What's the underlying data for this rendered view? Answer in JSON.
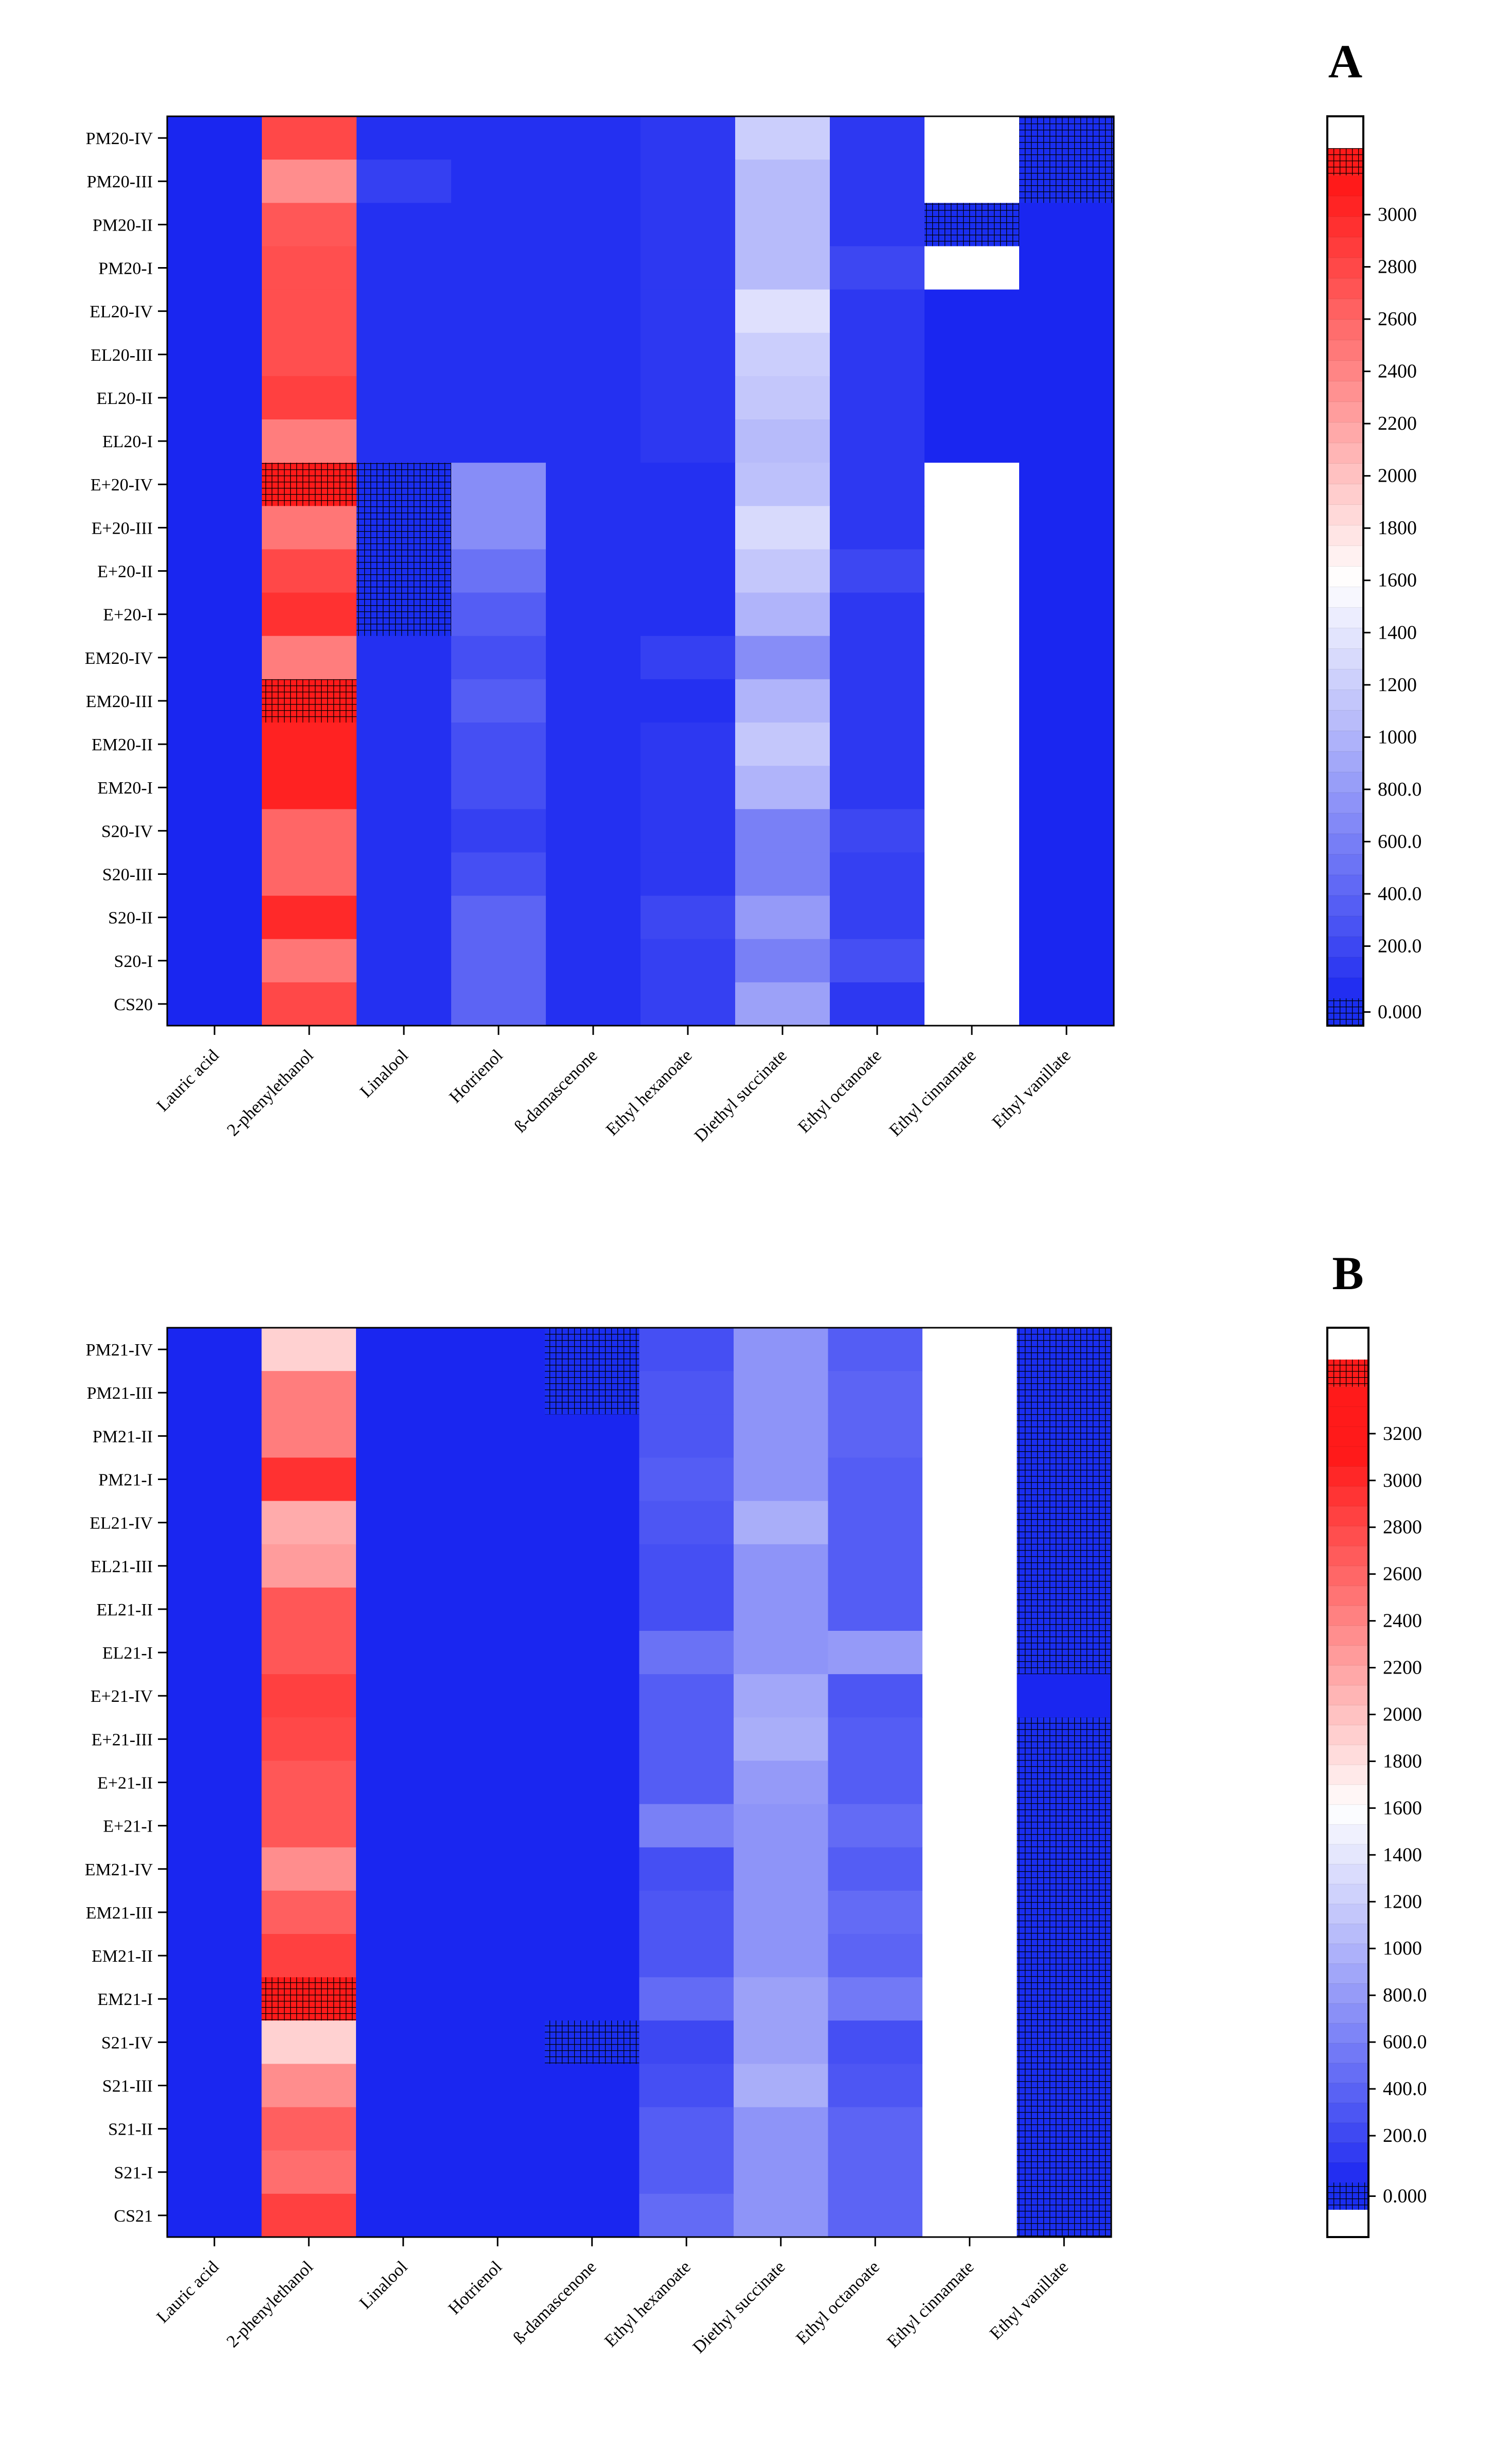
{
  "chart_data": [
    {
      "type": "heatmap",
      "panel_label": "A",
      "columns": [
        "Lauric acid",
        "2-phenylethanol",
        "Linalool",
        "Hotrienol",
        "ß-damascenone",
        "Ethyl hexanoate",
        "Diethyl succinate",
        "Ethyl octanoate",
        "Ethyl cinnamate",
        "Ethyl vanillate"
      ],
      "rows": [
        "PM20-IV",
        "PM20-III",
        "PM20-II",
        "PM20-I",
        "EL20-IV",
        "EL20-III",
        "EL20-II",
        "EL20-I",
        "E+20-IV",
        "E+20-III",
        "E+20-II",
        "E+20-I",
        "EM20-IV",
        "EM20-III",
        "EM20-II",
        "EM20-I",
        "S20-IV",
        "S20-III",
        "S20-II",
        "S20-I",
        "CS20"
      ],
      "values": [
        [
          0,
          2800,
          50,
          50,
          50,
          100,
          1200,
          100,
          "above",
          "zero"
        ],
        [
          0,
          2350,
          150,
          50,
          50,
          100,
          1050,
          100,
          "above",
          "zero"
        ],
        [
          0,
          2700,
          50,
          50,
          50,
          100,
          1050,
          100,
          "zero",
          0
        ],
        [
          0,
          2750,
          50,
          50,
          50,
          100,
          1050,
          200,
          "above",
          0
        ],
        [
          0,
          2750,
          50,
          50,
          50,
          100,
          1350,
          100,
          0,
          0
        ],
        [
          0,
          2750,
          50,
          50,
          50,
          100,
          1200,
          100,
          0,
          0
        ],
        [
          0,
          2850,
          50,
          50,
          50,
          100,
          1150,
          100,
          0,
          0
        ],
        [
          0,
          2450,
          50,
          50,
          50,
          100,
          1050,
          100,
          0,
          0
        ],
        [
          0,
          "above",
          "zero",
          700,
          50,
          50,
          1100,
          100,
          "above",
          0
        ],
        [
          0,
          2500,
          "zero",
          700,
          50,
          50,
          1300,
          100,
          "above",
          0
        ],
        [
          0,
          2800,
          "zero",
          500,
          50,
          50,
          1150,
          200,
          "above",
          0
        ],
        [
          0,
          2950,
          "zero",
          350,
          50,
          50,
          1000,
          100,
          "above",
          0
        ],
        [
          0,
          2450,
          50,
          250,
          50,
          150,
          700,
          100,
          "above",
          0
        ],
        [
          0,
          "above",
          50,
          350,
          50,
          50,
          1000,
          100,
          "above",
          0
        ],
        [
          0,
          3050,
          50,
          250,
          50,
          100,
          1150,
          100,
          "above",
          0
        ],
        [
          0,
          3050,
          50,
          250,
          50,
          100,
          1000,
          100,
          "above",
          0
        ],
        [
          0,
          2600,
          50,
          150,
          50,
          100,
          600,
          200,
          "above",
          0
        ],
        [
          0,
          2600,
          50,
          250,
          50,
          100,
          600,
          150,
          "above",
          0
        ],
        [
          0,
          3000,
          50,
          400,
          50,
          200,
          800,
          150,
          "above",
          0
        ],
        [
          0,
          2500,
          50,
          400,
          50,
          150,
          600,
          250,
          "above",
          0
        ],
        [
          0,
          2800,
          50,
          400,
          50,
          150,
          850,
          100,
          "above",
          0
        ]
      ],
      "colorbar": {
        "tick_labels": [
          "3000",
          "2800",
          "2600",
          "2400",
          "2200",
          "2000",
          "1800",
          "1600",
          "1400",
          "1200",
          "1000",
          "800.0",
          "600.0",
          "400.0",
          "200.0",
          "0.000"
        ],
        "tick_values": [
          3000,
          2800,
          2600,
          2400,
          2200,
          2000,
          1800,
          1600,
          1400,
          1200,
          1000,
          800,
          600,
          400,
          200,
          0
        ],
        "max": 3150,
        "legend_placement": "right"
      }
    },
    {
      "type": "heatmap",
      "panel_label": "B",
      "columns": [
        "Lauric acid",
        "2-phenylethanol",
        "Linalool",
        "Hotrienol",
        "ß-damascenone",
        "Ethyl hexanoate",
        "Diethyl succinate",
        "Ethyl octanoate",
        "Ethyl cinnamate",
        "Ethyl vanillate"
      ],
      "rows": [
        "PM21-IV",
        "PM21-III",
        "PM21-II",
        "PM21-I",
        "EL21-IV",
        "EL21-III",
        "EL21-II",
        "EL21-I",
        "E+21-IV",
        "E+21-III",
        "E+21-II",
        "E+21-I",
        "EM21-IV",
        "EM21-III",
        "EM21-II",
        "EM21-I",
        "S21-IV",
        "S21-III",
        "S21-II",
        "S21-I",
        "CS21"
      ],
      "values": [
        [
          0,
          1900,
          0,
          0,
          "zero",
          250,
          750,
          350,
          "above",
          "zero"
        ],
        [
          0,
          2450,
          0,
          0,
          "zero",
          300,
          750,
          400,
          "above",
          "zero"
        ],
        [
          0,
          2450,
          0,
          0,
          0,
          300,
          750,
          400,
          "above",
          "zero"
        ],
        [
          0,
          2950,
          0,
          0,
          0,
          350,
          750,
          350,
          "above",
          "zero"
        ],
        [
          0,
          2150,
          0,
          0,
          0,
          300,
          950,
          350,
          "above",
          "zero"
        ],
        [
          0,
          2250,
          0,
          0,
          0,
          250,
          750,
          350,
          "above",
          "zero"
        ],
        [
          0,
          2700,
          0,
          0,
          0,
          250,
          750,
          350,
          "above",
          "zero"
        ],
        [
          0,
          2700,
          0,
          0,
          0,
          500,
          750,
          800,
          "above",
          "zero"
        ],
        [
          0,
          2850,
          0,
          0,
          0,
          350,
          900,
          300,
          "above",
          0
        ],
        [
          0,
          2800,
          0,
          0,
          0,
          350,
          950,
          350,
          "above",
          "zero"
        ],
        [
          0,
          2700,
          0,
          0,
          0,
          350,
          800,
          350,
          "above",
          "zero"
        ],
        [
          0,
          2700,
          0,
          0,
          0,
          600,
          750,
          450,
          "above",
          "zero"
        ],
        [
          0,
          2350,
          0,
          0,
          0,
          250,
          750,
          350,
          "above",
          "zero"
        ],
        [
          0,
          2650,
          0,
          0,
          0,
          300,
          750,
          450,
          "above",
          "zero"
        ],
        [
          0,
          2850,
          0,
          0,
          0,
          300,
          750,
          400,
          "above",
          "zero"
        ],
        [
          0,
          "above",
          0,
          0,
          0,
          450,
          850,
          550,
          "above",
          "zero"
        ],
        [
          0,
          1900,
          0,
          0,
          "zero",
          200,
          850,
          250,
          "above",
          "zero"
        ],
        [
          0,
          2350,
          0,
          0,
          0,
          250,
          950,
          300,
          "above",
          "zero"
        ],
        [
          0,
          2650,
          0,
          0,
          0,
          350,
          750,
          400,
          "above",
          "zero"
        ],
        [
          0,
          2550,
          0,
          0,
          0,
          350,
          750,
          400,
          "above",
          "zero"
        ],
        [
          0,
          2850,
          0,
          0,
          0,
          450,
          750,
          400,
          "above",
          "zero"
        ]
      ],
      "colorbar": {
        "tick_labels": [
          "3200",
          "3000",
          "2800",
          "2600",
          "2400",
          "2200",
          "2000",
          "1800",
          "1600",
          "1400",
          "1200",
          "1000",
          "800.0",
          "600.0",
          "400.0",
          "200.0",
          "0.000"
        ],
        "tick_values": [
          3200,
          3000,
          2800,
          2600,
          2400,
          2200,
          2000,
          1800,
          1600,
          1400,
          1200,
          1000,
          800,
          600,
          400,
          200,
          0
        ],
        "max": 3400,
        "legend_placement": "right"
      }
    }
  ]
}
